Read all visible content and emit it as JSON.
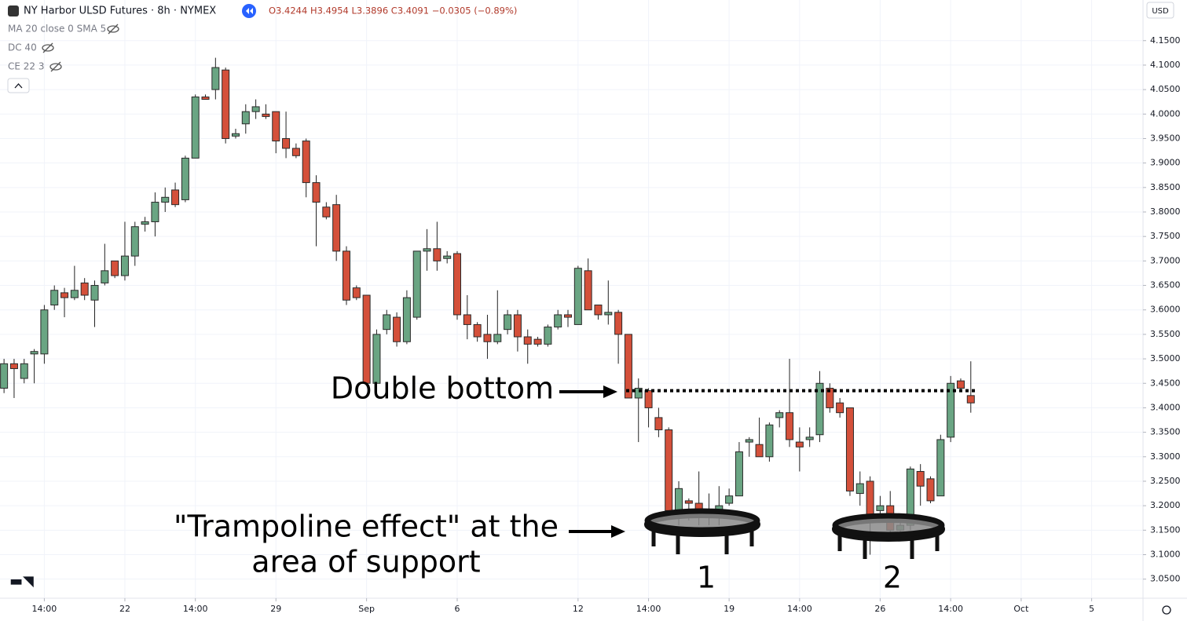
{
  "header": {
    "symbol": "NY Harbor ULSD Futures · 8h · NYMEX",
    "ohlc": "O3.4244 H3.4954 L3.3896 C3.4091 −0.0305 (−0.89%)",
    "currency": "USD",
    "indicators": [
      "MA 20 close 0 SMA 5",
      "DC 40",
      "CE 22 3"
    ]
  },
  "chart_data": {
    "type": "candlestick",
    "annotations": {
      "double_bottom": "Double bottom",
      "trampoline_line1": "\"Trampoline effect\" at the",
      "trampoline_line2": "area of support",
      "bottom_1": "1",
      "bottom_2": "2"
    },
    "level": 3.435,
    "up_color": "#6aa583",
    "down_color": "#d4503a",
    "open": [
      3.44,
      3.49,
      3.46,
      3.51,
      3.51,
      3.61,
      3.635,
      3.625,
      3.655,
      3.62,
      3.655,
      3.7,
      3.67,
      3.71,
      3.775,
      3.78,
      3.82,
      3.845,
      3.825,
      3.91,
      4.035,
      4.05,
      4.09,
      3.955,
      3.98,
      4.005,
      4.0,
      4.005,
      3.95,
      3.93,
      3.945,
      3.86,
      3.81,
      3.815,
      3.72,
      3.645,
      3.63,
      3.45,
      3.56,
      3.585,
      3.535,
      3.585,
      3.72,
      3.725,
      3.705,
      3.715,
      3.59,
      3.57,
      3.55,
      3.535,
      3.56,
      3.59,
      3.545,
      3.54,
      3.53,
      3.565,
      3.59,
      3.57,
      3.68,
      3.61,
      3.59,
      3.595,
      3.55,
      3.42,
      3.435,
      3.38,
      3.355,
      3.19,
      3.21,
      3.205,
      3.18,
      3.19,
      3.205,
      3.22,
      3.33,
      3.325,
      3.3,
      3.38,
      3.39,
      3.33,
      3.335,
      3.345,
      3.44,
      3.41,
      3.4,
      3.225,
      3.25,
      3.19,
      3.2,
      3.15,
      3.16,
      3.27,
      3.255,
      3.22,
      3.34,
      3.455,
      3.425
    ],
    "high": [
      3.5,
      3.5,
      3.5,
      3.52,
      3.61,
      3.65,
      3.645,
      3.69,
      3.665,
      3.66,
      3.735,
      3.7,
      3.78,
      3.78,
      3.79,
      3.84,
      3.85,
      3.86,
      3.915,
      4.04,
      4.04,
      4.115,
      4.095,
      3.97,
      4.02,
      4.03,
      4.02,
      4.005,
      4.005,
      3.94,
      3.95,
      3.875,
      3.82,
      3.835,
      3.73,
      3.65,
      3.63,
      3.56,
      3.6,
      3.595,
      3.64,
      3.72,
      3.765,
      3.78,
      3.72,
      3.72,
      3.63,
      3.575,
      3.59,
      3.64,
      3.6,
      3.6,
      3.56,
      3.545,
      3.57,
      3.6,
      3.6,
      3.69,
      3.705,
      3.61,
      3.66,
      3.6,
      3.55,
      3.46,
      3.44,
      3.4,
      3.36,
      3.25,
      3.215,
      3.27,
      3.225,
      3.24,
      3.235,
      3.33,
      3.34,
      3.38,
      3.37,
      3.395,
      3.5,
      3.36,
      3.36,
      3.475,
      3.45,
      3.42,
      3.4,
      3.27,
      3.26,
      3.22,
      3.23,
      3.17,
      3.28,
      3.285,
      3.26,
      3.345,
      3.465,
      3.46,
      3.495
    ],
    "low": [
      3.43,
      3.42,
      3.45,
      3.45,
      3.49,
      3.6,
      3.585,
      3.62,
      3.62,
      3.565,
      3.65,
      3.665,
      3.66,
      3.69,
      3.76,
      3.75,
      3.8,
      3.81,
      3.82,
      3.91,
      4.03,
      4.03,
      3.94,
      3.95,
      3.96,
      3.99,
      3.99,
      3.92,
      3.91,
      3.91,
      3.83,
      3.73,
      3.785,
      3.7,
      3.61,
      3.62,
      3.45,
      3.45,
      3.55,
      3.525,
      3.53,
      3.58,
      3.68,
      3.68,
      3.695,
      3.58,
      3.54,
      3.535,
      3.5,
      3.53,
      3.55,
      3.515,
      3.49,
      3.525,
      3.525,
      3.56,
      3.565,
      3.57,
      3.6,
      3.58,
      3.57,
      3.49,
      3.42,
      3.33,
      3.36,
      3.34,
      3.18,
      3.16,
      3.17,
      3.16,
      3.16,
      3.16,
      3.2,
      3.22,
      3.3,
      3.3,
      3.29,
      3.36,
      3.32,
      3.27,
      3.32,
      3.33,
      3.39,
      3.38,
      3.22,
      3.2,
      3.1,
      3.17,
      3.14,
      3.14,
      3.15,
      3.2,
      3.205,
      3.22,
      3.33,
      3.435,
      3.39
    ],
    "close": [
      3.49,
      3.48,
      3.49,
      3.515,
      3.6,
      3.64,
      3.625,
      3.64,
      3.63,
      3.65,
      3.68,
      3.67,
      3.71,
      3.77,
      3.78,
      3.82,
      3.83,
      3.815,
      3.91,
      4.035,
      4.03,
      4.095,
      3.95,
      3.96,
      4.005,
      4.015,
      3.995,
      3.945,
      3.93,
      3.915,
      3.86,
      3.82,
      3.79,
      3.72,
      3.62,
      3.625,
      3.45,
      3.55,
      3.59,
      3.535,
      3.625,
      3.72,
      3.725,
      3.7,
      3.71,
      3.59,
      3.57,
      3.545,
      3.535,
      3.55,
      3.59,
      3.545,
      3.53,
      3.53,
      3.565,
      3.59,
      3.585,
      3.685,
      3.6,
      3.59,
      3.595,
      3.55,
      3.42,
      3.44,
      3.4,
      3.355,
      3.19,
      3.235,
      3.205,
      3.18,
      3.185,
      3.2,
      3.22,
      3.31,
      3.335,
      3.3,
      3.365,
      3.39,
      3.335,
      3.32,
      3.34,
      3.45,
      3.4,
      3.39,
      3.23,
      3.245,
      3.18,
      3.2,
      3.15,
      3.16,
      3.275,
      3.24,
      3.21,
      3.335,
      3.45,
      3.44,
      3.41
    ],
    "xlim": [
      -0.4,
      113.1
    ],
    "xticks": [
      {
        "value": 4,
        "label": "14:00"
      },
      {
        "value": 12,
        "label": "22"
      },
      {
        "value": 19,
        "label": "14:00"
      },
      {
        "value": 27,
        "label": "29"
      },
      {
        "value": 36,
        "label": "Sep"
      },
      {
        "value": 45,
        "label": "6"
      },
      {
        "value": 57,
        "label": "12"
      },
      {
        "value": 64,
        "label": "14:00"
      },
      {
        "value": 72,
        "label": "19"
      },
      {
        "value": 79,
        "label": "14:00"
      },
      {
        "value": 87,
        "label": "26"
      },
      {
        "value": 94,
        "label": "14:00"
      },
      {
        "value": 101,
        "label": "Oct"
      },
      {
        "value": 108,
        "label": "5"
      }
    ],
    "ylim": [
      3.011,
      4.233
    ],
    "yticks": [
      {
        "value": 3.05,
        "label": "3.0500"
      },
      {
        "value": 3.1,
        "label": "3.1000"
      },
      {
        "value": 3.15,
        "label": "3.1500"
      },
      {
        "value": 3.2,
        "label": "3.2000"
      },
      {
        "value": 3.25,
        "label": "3.2500"
      },
      {
        "value": 3.3,
        "label": "3.3000"
      },
      {
        "value": 3.35,
        "label": "3.3500"
      },
      {
        "value": 3.4,
        "label": "3.4000"
      },
      {
        "value": 3.45,
        "label": "3.4500"
      },
      {
        "value": 3.5,
        "label": "3.5000"
      },
      {
        "value": 3.55,
        "label": "3.5500"
      },
      {
        "value": 3.6,
        "label": "3.6000"
      },
      {
        "value": 3.65,
        "label": "3.6500"
      },
      {
        "value": 3.7,
        "label": "3.7000"
      },
      {
        "value": 3.75,
        "label": "3.7500"
      },
      {
        "value": 3.8,
        "label": "3.8000"
      },
      {
        "value": 3.85,
        "label": "3.8500"
      },
      {
        "value": 3.9,
        "label": "3.9000"
      },
      {
        "value": 3.95,
        "label": "3.9500"
      },
      {
        "value": 4.0,
        "label": "4.0000"
      },
      {
        "value": 4.05,
        "label": "4.0500"
      },
      {
        "value": 4.1,
        "label": "4.1000"
      },
      {
        "value": 4.15,
        "label": "4.1500"
      }
    ],
    "grid": true
  }
}
